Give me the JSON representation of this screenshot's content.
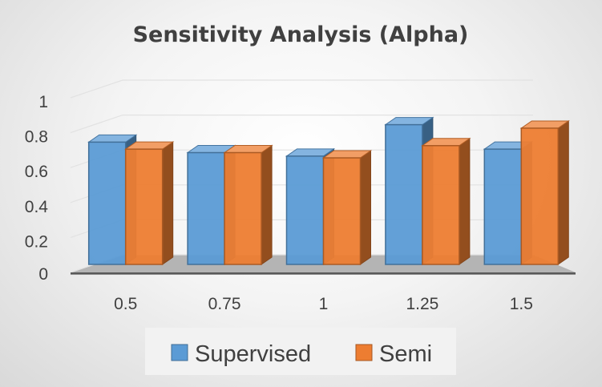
{
  "chart_data": {
    "type": "bar",
    "title": "Sensitivity Analysis (Alpha)",
    "xlabel": "",
    "ylabel": "",
    "categories": [
      "0.5",
      "0.75",
      "1",
      "1.25",
      "1.5"
    ],
    "y_ticks": [
      "0",
      "0.2",
      "0.4",
      "0.6",
      "0.8",
      "1"
    ],
    "ylim": [
      0,
      1
    ],
    "grid": true,
    "legend_position": "bottom",
    "style": "3d-clustered-column",
    "series": [
      {
        "name": "Supervised",
        "color": "#5b9bd5",
        "values": [
          0.7,
          0.64,
          0.62,
          0.8,
          0.66
        ]
      },
      {
        "name": "Semi",
        "color": "#ed7d31",
        "values": [
          0.66,
          0.64,
          0.61,
          0.68,
          0.78
        ]
      }
    ]
  }
}
